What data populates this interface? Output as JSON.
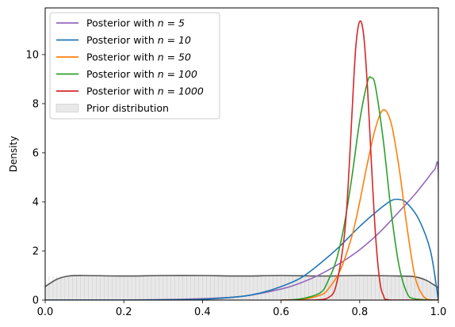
{
  "chart_data": {
    "type": "line",
    "title": "",
    "xlabel": "",
    "ylabel": "Density",
    "xlim": [
      0,
      1
    ],
    "ylim": [
      0,
      11.9
    ],
    "grid": false,
    "legend_placement": "top-left",
    "x_ticks": [
      {
        "value": 0.0,
        "label": "0.0"
      },
      {
        "value": 0.2,
        "label": "0.2"
      },
      {
        "value": 0.4,
        "label": "0.4"
      },
      {
        "value": 0.6,
        "label": "0.6"
      },
      {
        "value": 0.8,
        "label": "0.8"
      },
      {
        "value": 1.0,
        "label": "1.0"
      }
    ],
    "y_ticks": [
      {
        "value": 0,
        "label": "0"
      },
      {
        "value": 2,
        "label": "2"
      },
      {
        "value": 4,
        "label": "4"
      },
      {
        "value": 6,
        "label": "6"
      },
      {
        "value": 8,
        "label": "8"
      },
      {
        "value": 10,
        "label": "10"
      }
    ],
    "series": [
      {
        "name": "Posterior with n = 5",
        "legend_prefix": "Posterior with ",
        "legend_math": "n = 5",
        "color": "#9467bd",
        "x": [
          0.0,
          0.1,
          0.2,
          0.3,
          0.4,
          0.5,
          0.6,
          0.65,
          0.7,
          0.75,
          0.8,
          0.85,
          0.9,
          0.94,
          0.97,
          0.99,
          1.0,
          1.0
        ],
        "y": [
          0.0,
          0.0,
          0.0,
          0.02,
          0.06,
          0.15,
          0.45,
          0.7,
          1.05,
          1.5,
          2.05,
          2.75,
          3.6,
          4.3,
          4.9,
          5.3,
          5.2,
          0.0
        ]
      },
      {
        "name": "Posterior with n = 10",
        "legend_prefix": "Posterior with ",
        "legend_math": "n = 10",
        "color": "#1f77b4",
        "x": [
          0.0,
          0.1,
          0.2,
          0.3,
          0.4,
          0.5,
          0.55,
          0.6,
          0.65,
          0.7,
          0.75,
          0.8,
          0.85,
          0.88,
          0.9,
          0.92,
          0.95,
          0.98,
          1.0
        ],
        "y": [
          0.0,
          0.0,
          0.0,
          0.01,
          0.03,
          0.15,
          0.3,
          0.55,
          0.9,
          1.5,
          2.2,
          3.0,
          3.7,
          4.05,
          4.1,
          3.95,
          3.3,
          2.0,
          0.0
        ]
      },
      {
        "name": "Posterior with n = 50",
        "legend_prefix": "Posterior with ",
        "legend_math": "n = 50",
        "color": "#ff7f0e",
        "x": [
          0.6,
          0.65,
          0.7,
          0.72,
          0.75,
          0.78,
          0.8,
          0.82,
          0.84,
          0.86,
          0.88,
          0.9,
          0.92,
          0.94,
          0.96,
          0.98,
          1.0
        ],
        "y": [
          0.0,
          0.02,
          0.2,
          0.45,
          1.2,
          2.6,
          4.0,
          5.6,
          7.0,
          7.75,
          7.2,
          5.4,
          3.0,
          1.0,
          0.2,
          0.0,
          0.0
        ]
      },
      {
        "name": "Posterior with n = 100",
        "legend_prefix": "Posterior with ",
        "legend_math": "n = 100",
        "color": "#2ca02c",
        "x": [
          0.6,
          0.65,
          0.7,
          0.72,
          0.74,
          0.76,
          0.78,
          0.8,
          0.82,
          0.83,
          0.84,
          0.86,
          0.88,
          0.9,
          0.92,
          0.94,
          1.0
        ],
        "y": [
          0.0,
          0.05,
          0.3,
          0.8,
          1.6,
          3.0,
          5.0,
          7.3,
          8.9,
          9.05,
          8.7,
          6.5,
          3.6,
          1.4,
          0.3,
          0.05,
          0.0
        ]
      },
      {
        "name": "Posterior with n = 1000",
        "legend_prefix": "Posterior with ",
        "legend_math": "n = 1000",
        "color": "#d62728",
        "x": [
          0.6,
          0.68,
          0.72,
          0.74,
          0.76,
          0.77,
          0.78,
          0.79,
          0.8,
          0.81,
          0.82,
          0.83,
          0.84,
          0.85,
          0.86,
          0.88,
          1.0
        ],
        "y": [
          0.0,
          0.0,
          0.1,
          0.6,
          2.5,
          4.5,
          7.5,
          10.3,
          11.35,
          10.8,
          8.6,
          5.5,
          2.7,
          0.9,
          0.2,
          0.0,
          0.0
        ]
      }
    ],
    "prior": {
      "name": "Prior distribution",
      "fill_color": "#e8e8e8",
      "line_color": "#555555",
      "x": [
        0.0,
        0.03,
        0.06,
        0.1,
        0.2,
        0.3,
        0.4,
        0.5,
        0.6,
        0.7,
        0.8,
        0.9,
        0.94,
        0.97,
        1.0
      ],
      "y": [
        0.55,
        0.85,
        0.98,
        1.0,
        0.98,
        1.0,
        1.0,
        0.98,
        1.0,
        0.98,
        1.0,
        0.98,
        0.95,
        0.8,
        0.5
      ]
    }
  }
}
